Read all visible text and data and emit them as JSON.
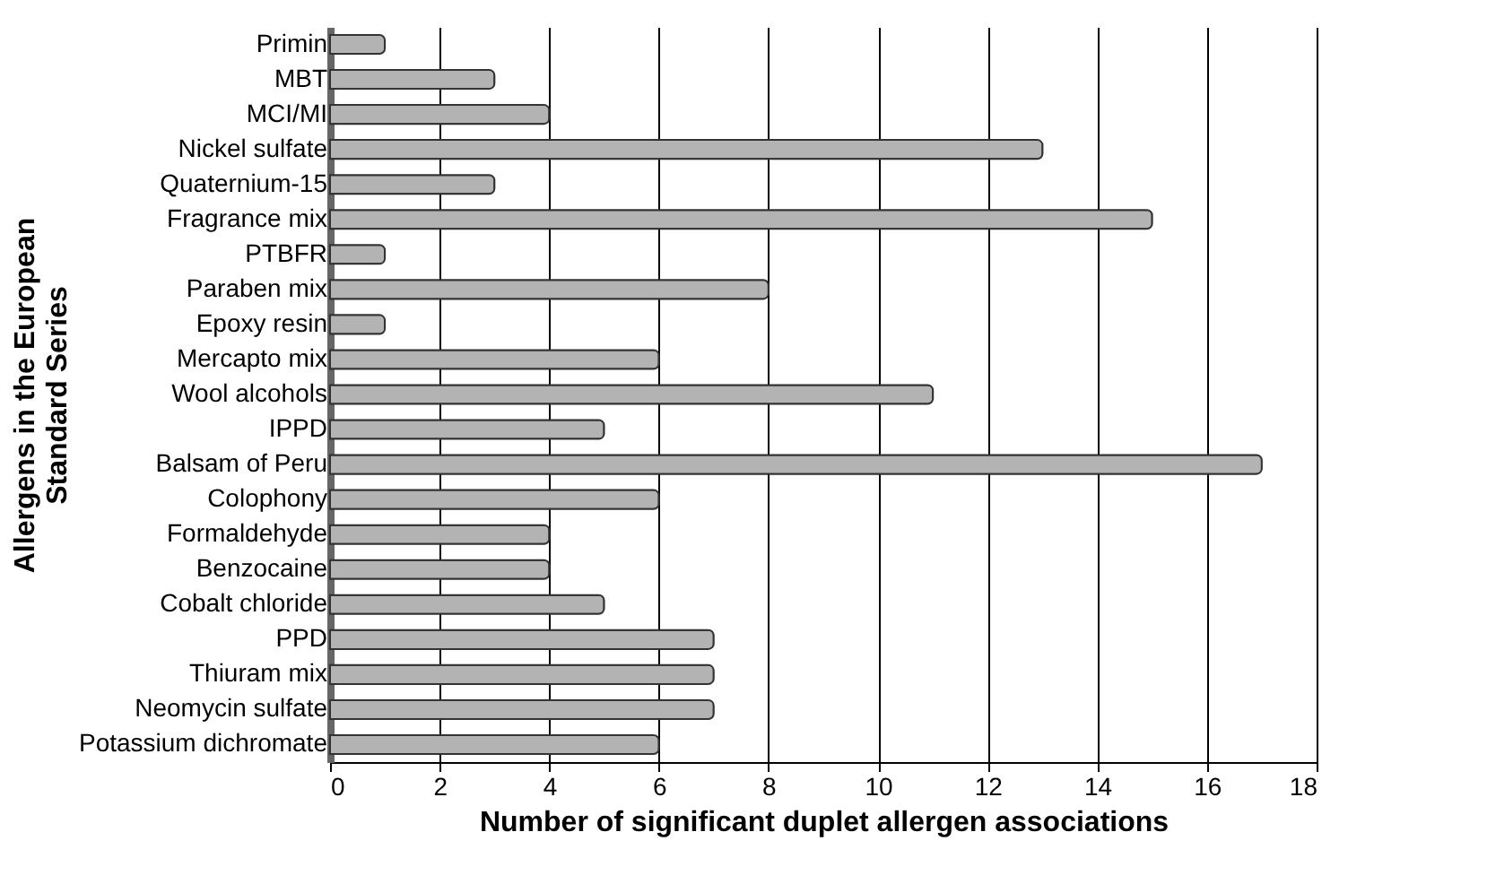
{
  "chart_data": {
    "type": "bar",
    "orientation": "horizontal",
    "xlabel": "Number of significant duplet allergen associations",
    "ylabel": "Allergens in the European\nStandard Series",
    "categories": [
      "Primin",
      "MBT",
      "MCI/MI",
      "Nickel sulfate",
      "Quaternium-15",
      "Fragrance mix",
      "PTBFR",
      "Paraben mix",
      "Epoxy resin",
      "Mercapto mix",
      "Wool alcohols",
      "IPPD",
      "Balsam of Peru",
      "Colophony",
      "Formaldehyde",
      "Benzocaine",
      "Cobalt chloride",
      "PPD",
      "Thiuram mix",
      "Neomycin sulfate",
      "Potassium dichromate"
    ],
    "values": [
      1,
      3,
      4,
      13,
      3,
      15,
      1,
      8,
      1,
      6,
      11,
      5,
      17,
      6,
      4,
      4,
      5,
      7,
      7,
      7,
      6
    ],
    "color": "#b3b3b3",
    "xlim": [
      0,
      18
    ],
    "xticks": [
      0,
      2,
      4,
      6,
      8,
      10,
      12,
      14,
      16,
      18
    ],
    "grid": "x"
  }
}
